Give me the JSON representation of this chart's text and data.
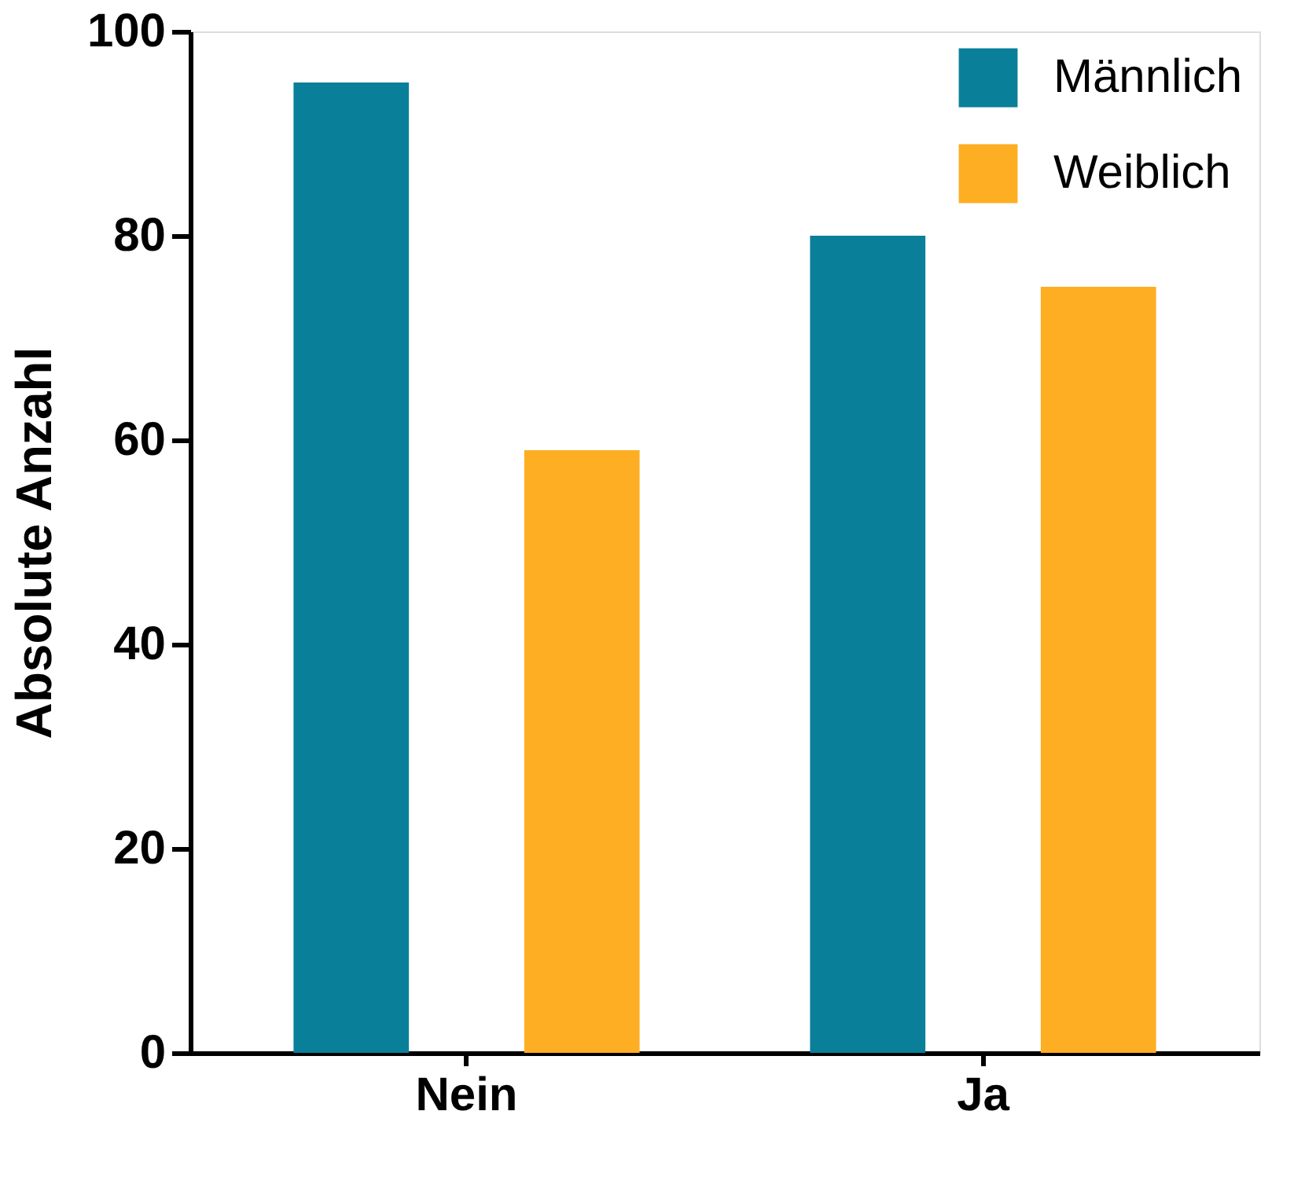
{
  "chart_data": {
    "type": "bar",
    "ylabel": "Absolute Anzahl",
    "categories": [
      "Nein",
      "Ja"
    ],
    "series": [
      {
        "name": "Männlich",
        "color": "#0a7f99",
        "values": [
          95,
          80
        ]
      },
      {
        "name": "Weiblich",
        "color": "#fdae22",
        "values": [
          59,
          75
        ]
      }
    ],
    "ylim": [
      0,
      100
    ],
    "yticks": [
      0,
      20,
      40,
      60,
      80,
      100
    ],
    "grid": false,
    "legend": "top right"
  }
}
